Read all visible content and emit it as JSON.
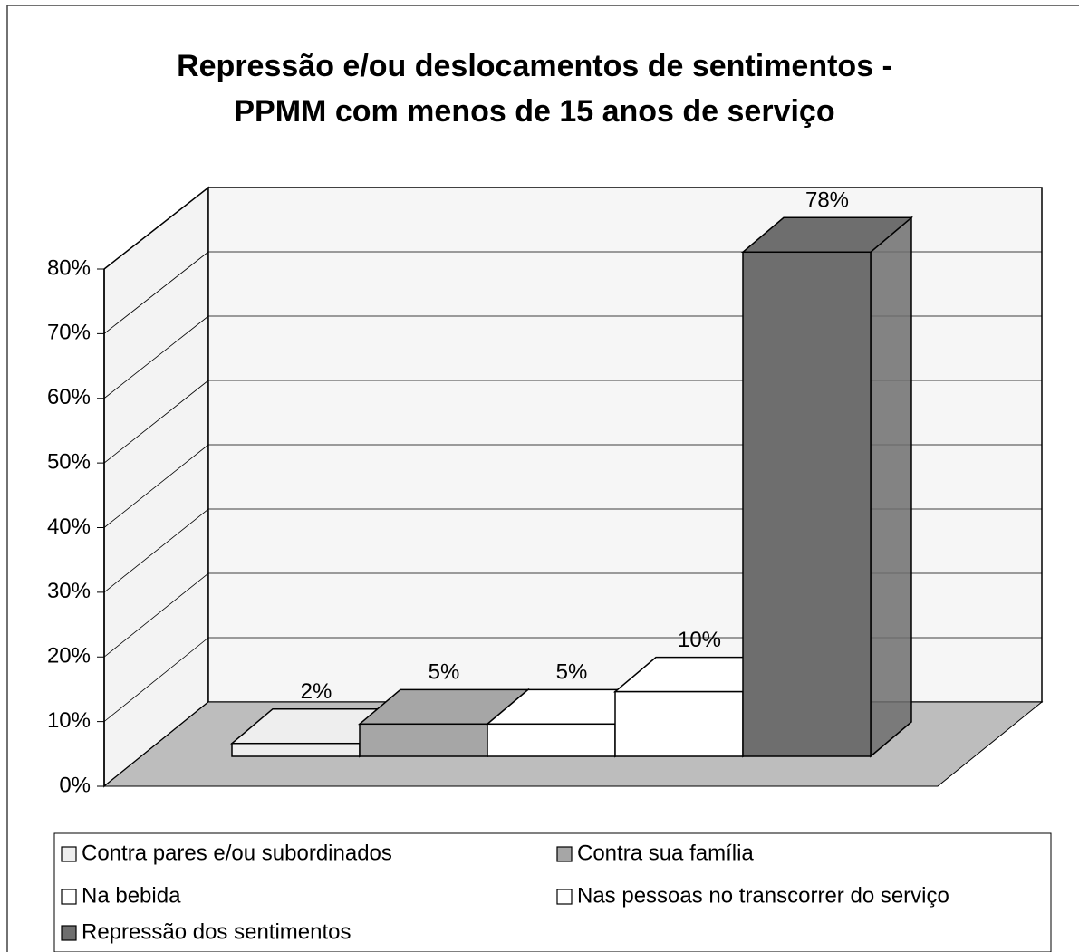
{
  "chart_data": {
    "type": "bar3d",
    "title": [
      "Repressão e/ou deslocamentos de sentimentos -",
      "PPMM com menos de 15 anos de serviço"
    ],
    "categories": [
      null
    ],
    "series": [
      {
        "name": "Contra pares e/ou subordinados",
        "color": "#eeeeee",
        "values": [
          2
        ],
        "value_labels": [
          "2%"
        ]
      },
      {
        "name": "Contra sua família",
        "color": "#a6a6a6",
        "values": [
          5
        ],
        "value_labels": [
          "5%"
        ]
      },
      {
        "name": "Na bebida",
        "color": "#ffffff",
        "values": [
          5
        ],
        "value_labels": [
          "5%"
        ]
      },
      {
        "name": "Nas pessoas no transcorrer do serviço",
        "color": "#ffffff",
        "values": [
          10
        ],
        "value_labels": [
          "10%"
        ]
      },
      {
        "name": "Repressão dos sentimentos",
        "color": "#6e6e6e",
        "values": [
          78
        ],
        "value_labels": [
          "78%"
        ]
      }
    ],
    "ylim": [
      0,
      80
    ],
    "yticks": [
      {
        "value": 0,
        "label": "0%"
      },
      {
        "value": 10,
        "label": "10%"
      },
      {
        "value": 20,
        "label": "20%"
      },
      {
        "value": 30,
        "label": "30%"
      },
      {
        "value": 40,
        "label": "40%"
      },
      {
        "value": 50,
        "label": "50%"
      },
      {
        "value": 60,
        "label": "60%"
      },
      {
        "value": 70,
        "label": "70%"
      },
      {
        "value": 80,
        "label": "80%"
      }
    ],
    "grid": true
  }
}
